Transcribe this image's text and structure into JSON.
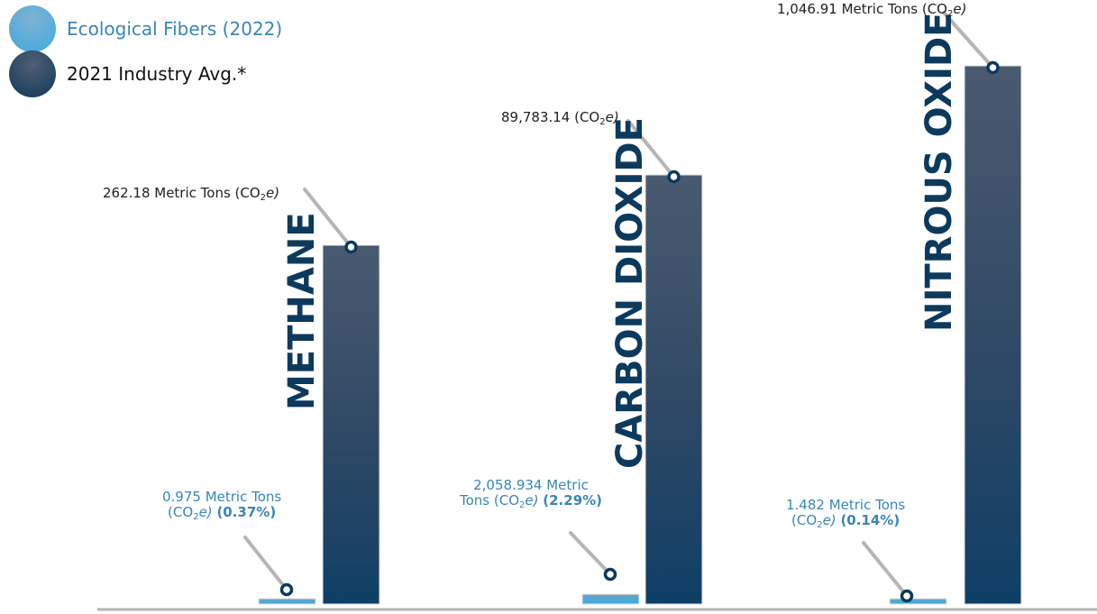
{
  "legend": [
    {
      "label": "Ecological Fibers (2022)",
      "color": "#4aa3d3",
      "text_color": "#3b86b8"
    },
    {
      "label": "2021 Industry Avg.*",
      "color": "#1a3552",
      "text_color": "#111111"
    }
  ],
  "annotations": {
    "methane_avg": {
      "pre": "262.18 Metric Tons (CO",
      "sub": "2",
      "post": "e)"
    },
    "carbon_avg": {
      "pre": "89,783.14 (CO",
      "sub": "2",
      "post": "e)"
    },
    "nitrous_avg": {
      "pre": "1,046.91 Metric Tons (CO",
      "sub": "2",
      "post": "e)"
    },
    "methane_eco": {
      "line1": "0.975 Metric Tons",
      "pre": "(CO",
      "sub": "2",
      "post": "e)",
      "pct": "(0.37%)"
    },
    "carbon_eco": {
      "line1": "2,058.934 Metric",
      "pre": "Tons (CO",
      "sub": "2",
      "post": "e)",
      "pct": "(2.29%)"
    },
    "nitrous_eco": {
      "line1": "1.482 Metric Tons",
      "pre": "(CO",
      "sub": "2",
      "post": "e)",
      "pct": "(0.14%)"
    }
  },
  "chart_data": {
    "type": "bar",
    "categories": [
      "METHANE",
      "CARBON DIOXIDE",
      "NITROUS OXIDE"
    ],
    "series": [
      {
        "name": "Ecological Fibers (2022)",
        "values": [
          0.975,
          2058.934,
          1.482
        ]
      },
      {
        "name": "2021 Industry Avg.*",
        "values": [
          262.18,
          89783.14,
          1046.91
        ]
      }
    ],
    "percentages": [
      "0.37%",
      "2.29%",
      "0.14%"
    ],
    "scale": "each gas drawn on its own scale",
    "grid": false,
    "legend_position": "top-left"
  }
}
